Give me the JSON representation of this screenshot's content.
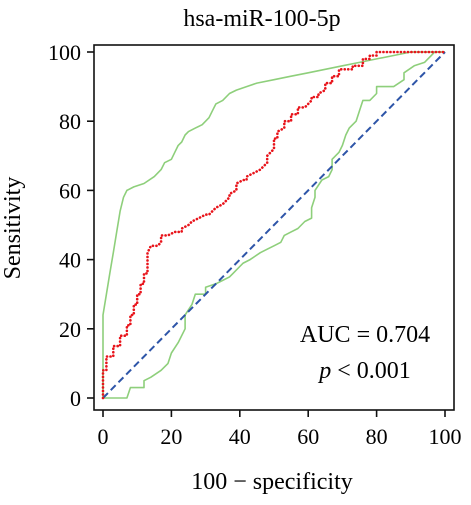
{
  "chart_data": {
    "type": "line",
    "title": "hsa-miR-100-5p",
    "xlabel": "100 − specificity",
    "ylabel": "Sensitivity",
    "xlim": [
      0,
      100
    ],
    "ylim": [
      0,
      100
    ],
    "xticks": [
      0,
      20,
      40,
      60,
      80,
      100
    ],
    "yticks": [
      0,
      20,
      40,
      60,
      80,
      100
    ],
    "grid": false,
    "annotation": {
      "auc_text": "AUC = 0.704",
      "p_symbol": "p",
      "p_rest": " < 0.001"
    },
    "series": [
      {
        "role": "roc-curve",
        "color": "#e8141b",
        "style": "dotted",
        "points": [
          [
            0,
            0
          ],
          [
            0,
            4
          ],
          [
            0,
            8
          ],
          [
            1,
            8
          ],
          [
            1,
            12
          ],
          [
            3,
            12
          ],
          [
            3,
            15
          ],
          [
            5,
            15
          ],
          [
            5,
            18
          ],
          [
            7,
            18
          ],
          [
            7,
            21
          ],
          [
            8,
            21
          ],
          [
            8,
            24
          ],
          [
            9,
            24
          ],
          [
            9,
            27
          ],
          [
            10,
            27
          ],
          [
            10,
            30
          ],
          [
            11,
            30
          ],
          [
            11,
            33
          ],
          [
            12,
            33
          ],
          [
            12,
            36
          ],
          [
            13,
            36
          ],
          [
            13,
            39
          ],
          [
            13,
            42
          ],
          [
            14,
            44
          ],
          [
            16,
            44
          ],
          [
            17,
            45
          ],
          [
            17,
            47
          ],
          [
            19,
            47
          ],
          [
            21,
            48
          ],
          [
            23,
            48
          ],
          [
            23,
            49
          ],
          [
            25,
            50
          ],
          [
            26,
            51
          ],
          [
            28,
            52
          ],
          [
            30,
            53
          ],
          [
            31,
            53
          ],
          [
            33,
            55
          ],
          [
            35,
            56
          ],
          [
            37,
            58
          ],
          [
            37,
            59
          ],
          [
            39,
            60
          ],
          [
            39,
            62
          ],
          [
            41,
            63
          ],
          [
            42,
            63
          ],
          [
            42,
            64
          ],
          [
            44,
            65
          ],
          [
            46,
            66
          ],
          [
            47,
            67
          ],
          [
            48,
            68
          ],
          [
            48,
            70
          ],
          [
            50,
            72
          ],
          [
            50,
            75
          ],
          [
            51,
            75
          ],
          [
            51,
            77
          ],
          [
            53,
            78
          ],
          [
            53,
            80
          ],
          [
            55,
            80
          ],
          [
            55,
            82
          ],
          [
            57,
            82
          ],
          [
            57,
            84
          ],
          [
            59,
            84
          ],
          [
            61,
            86
          ],
          [
            61,
            87
          ],
          [
            63,
            87
          ],
          [
            63,
            88
          ],
          [
            65,
            89
          ],
          [
            65,
            91
          ],
          [
            67,
            91
          ],
          [
            67,
            93
          ],
          [
            69,
            93
          ],
          [
            69,
            95
          ],
          [
            73,
            95
          ],
          [
            73,
            96
          ],
          [
            76,
            96
          ],
          [
            76,
            98
          ],
          [
            78,
            98
          ],
          [
            78,
            99
          ],
          [
            80,
            99
          ],
          [
            80,
            100
          ],
          [
            100,
            100
          ]
        ]
      },
      {
        "role": "ci-upper",
        "color": "#8ecf7b",
        "style": "solid",
        "points": [
          [
            0,
            0
          ],
          [
            0,
            24
          ],
          [
            1,
            30
          ],
          [
            2,
            36
          ],
          [
            3,
            42
          ],
          [
            4,
            48
          ],
          [
            5,
            54
          ],
          [
            6,
            58
          ],
          [
            7,
            60
          ],
          [
            9,
            61
          ],
          [
            12,
            62
          ],
          [
            15,
            64
          ],
          [
            17,
            66
          ],
          [
            18,
            68
          ],
          [
            20,
            69
          ],
          [
            21,
            71
          ],
          [
            22,
            73
          ],
          [
            23,
            74
          ],
          [
            24,
            76
          ],
          [
            25,
            77
          ],
          [
            27,
            78
          ],
          [
            29,
            79
          ],
          [
            31,
            81
          ],
          [
            32,
            83
          ],
          [
            33,
            85
          ],
          [
            35,
            86
          ],
          [
            37,
            88
          ],
          [
            39,
            89
          ],
          [
            42,
            90
          ],
          [
            45,
            91
          ],
          [
            50,
            92
          ],
          [
            55,
            93
          ],
          [
            60,
            94
          ],
          [
            65,
            95
          ],
          [
            70,
            96
          ],
          [
            75,
            97
          ],
          [
            80,
            98
          ],
          [
            85,
            99
          ],
          [
            90,
            100
          ],
          [
            100,
            100
          ]
        ]
      },
      {
        "role": "ci-lower",
        "color": "#8ecf7b",
        "style": "solid",
        "points": [
          [
            0,
            0
          ],
          [
            5,
            0
          ],
          [
            7,
            0
          ],
          [
            8,
            3
          ],
          [
            10,
            3
          ],
          [
            12,
            3
          ],
          [
            12,
            5
          ],
          [
            14,
            6
          ],
          [
            17,
            8
          ],
          [
            19,
            10
          ],
          [
            20,
            13
          ],
          [
            22,
            16
          ],
          [
            24,
            20
          ],
          [
            24,
            24
          ],
          [
            26,
            27
          ],
          [
            27,
            30
          ],
          [
            30,
            30
          ],
          [
            30,
            32
          ],
          [
            33,
            33
          ],
          [
            35,
            34
          ],
          [
            37,
            35
          ],
          [
            38,
            36
          ],
          [
            40,
            38
          ],
          [
            41,
            39
          ],
          [
            43,
            40
          ],
          [
            46,
            42
          ],
          [
            48,
            43
          ],
          [
            50,
            44
          ],
          [
            52,
            45
          ],
          [
            53,
            47
          ],
          [
            55,
            48
          ],
          [
            57,
            49
          ],
          [
            59,
            51
          ],
          [
            61,
            52
          ],
          [
            61,
            55
          ],
          [
            62,
            58
          ],
          [
            62,
            60
          ],
          [
            64,
            63
          ],
          [
            66,
            64
          ],
          [
            67,
            66
          ],
          [
            67,
            69
          ],
          [
            69,
            71
          ],
          [
            70,
            73
          ],
          [
            71,
            76
          ],
          [
            72,
            78
          ],
          [
            74,
            80
          ],
          [
            75,
            83
          ],
          [
            76,
            86
          ],
          [
            78,
            86
          ],
          [
            80,
            88
          ],
          [
            80,
            90
          ],
          [
            85,
            90
          ],
          [
            88,
            92
          ],
          [
            88,
            94
          ],
          [
            91,
            96
          ],
          [
            94,
            97
          ],
          [
            95,
            98
          ],
          [
            96,
            99
          ],
          [
            97,
            100
          ],
          [
            100,
            100
          ]
        ]
      },
      {
        "role": "reference-diagonal",
        "color": "#2e55a8",
        "style": "dashed",
        "points": [
          [
            0,
            0
          ],
          [
            100,
            100
          ]
        ]
      }
    ]
  }
}
